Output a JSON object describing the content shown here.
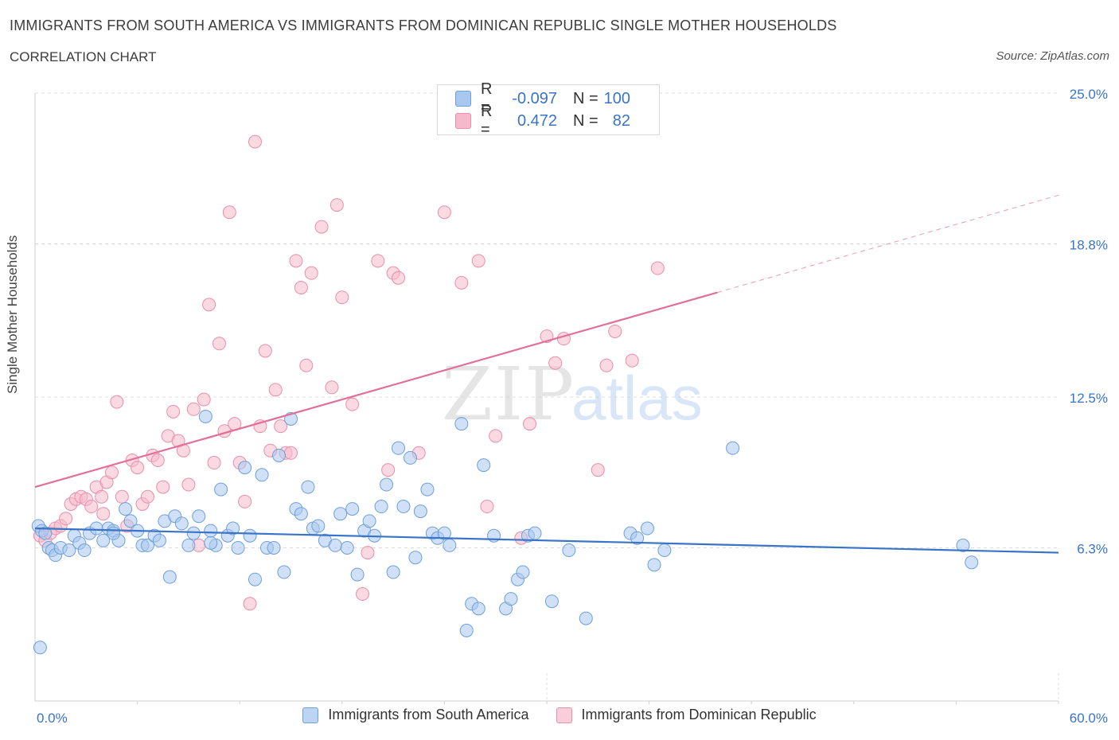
{
  "header": {
    "title": "IMMIGRANTS FROM SOUTH AMERICA VS IMMIGRANTS FROM DOMINICAN REPUBLIC SINGLE MOTHER HOUSEHOLDS",
    "subtitle": "CORRELATION CHART",
    "source": "Source: ZipAtlas.com"
  },
  "legend": {
    "rows": [
      {
        "r_label": "R =",
        "r_value": "-0.097",
        "n_label": "N =",
        "n_value": "100"
      },
      {
        "r_label": "R =",
        "r_value": "0.472",
        "n_label": "N =",
        "n_value": "82"
      }
    ]
  },
  "watermark": {
    "zip": "ZIP",
    "atlas": "atlas"
  },
  "colors": {
    "blue_fill": "#a9c8f0",
    "blue_stroke": "#6e9fdc",
    "blue_line": "#3a74c6",
    "pink_fill": "#f6b9cb",
    "pink_stroke": "#e88fab",
    "pink_line": "#e0709a",
    "tick_label": "#3a74c6",
    "grid": "#dcdcdc"
  },
  "chart_data": {
    "type": "scatter",
    "title": "IMMIGRANTS FROM SOUTH AMERICA VS IMMIGRANTS FROM DOMINICAN REPUBLIC SINGLE MOTHER HOUSEHOLDS",
    "xlabel": "",
    "ylabel": "Single Mother Households",
    "xlim": [
      0,
      60
    ],
    "ylim": [
      0,
      25
    ],
    "x_tick_labels": [
      "0.0%",
      "60.0%"
    ],
    "y_ticks": [
      6.3,
      12.5,
      18.8,
      25.0
    ],
    "y_tick_labels": [
      "6.3%",
      "12.5%",
      "18.8%",
      "25.0%"
    ],
    "grid": true,
    "legend_position": "top-center",
    "series": [
      {
        "name": "Immigrants from South America",
        "R": -0.097,
        "N": 100,
        "trend": {
          "x0": 0,
          "y0": 7.1,
          "x1": 60,
          "y1": 6.1
        },
        "points": [
          [
            0.2,
            7.2
          ],
          [
            0.4,
            7.0
          ],
          [
            0.6,
            6.9
          ],
          [
            0.8,
            6.3
          ],
          [
            1.0,
            6.2
          ],
          [
            1.2,
            6.0
          ],
          [
            1.5,
            6.3
          ],
          [
            2.0,
            6.2
          ],
          [
            2.3,
            6.8
          ],
          [
            2.6,
            6.5
          ],
          [
            2.9,
            6.2
          ],
          [
            3.2,
            6.9
          ],
          [
            3.6,
            7.1
          ],
          [
            4.0,
            6.6
          ],
          [
            4.3,
            7.1
          ],
          [
            4.6,
            7.0
          ],
          [
            4.9,
            6.6
          ],
          [
            5.3,
            7.9
          ],
          [
            5.6,
            7.4
          ],
          [
            6.0,
            7.0
          ],
          [
            6.3,
            6.4
          ],
          [
            6.6,
            6.4
          ],
          [
            7.0,
            6.8
          ],
          [
            7.3,
            6.6
          ],
          [
            7.6,
            7.4
          ],
          [
            7.9,
            5.1
          ],
          [
            8.2,
            7.6
          ],
          [
            8.6,
            7.3
          ],
          [
            9.0,
            6.4
          ],
          [
            9.3,
            6.9
          ],
          [
            9.6,
            7.6
          ],
          [
            10.0,
            11.7
          ],
          [
            10.3,
            7.0
          ],
          [
            10.6,
            6.4
          ],
          [
            10.9,
            8.7
          ],
          [
            11.3,
            6.8
          ],
          [
            11.6,
            7.1
          ],
          [
            11.9,
            6.3
          ],
          [
            12.3,
            9.6
          ],
          [
            12.6,
            6.8
          ],
          [
            12.9,
            5.0
          ],
          [
            13.3,
            9.3
          ],
          [
            13.6,
            6.3
          ],
          [
            14.0,
            6.3
          ],
          [
            14.3,
            10.1
          ],
          [
            14.6,
            5.3
          ],
          [
            15.0,
            11.6
          ],
          [
            15.3,
            7.9
          ],
          [
            15.6,
            7.7
          ],
          [
            16.0,
            8.8
          ],
          [
            16.3,
            7.1
          ],
          [
            16.6,
            7.2
          ],
          [
            17.0,
            6.6
          ],
          [
            17.6,
            6.4
          ],
          [
            17.9,
            7.7
          ],
          [
            18.3,
            6.3
          ],
          [
            18.6,
            7.9
          ],
          [
            18.9,
            5.2
          ],
          [
            19.3,
            7.0
          ],
          [
            19.6,
            7.4
          ],
          [
            19.9,
            6.8
          ],
          [
            20.3,
            8.0
          ],
          [
            20.6,
            8.9
          ],
          [
            21.0,
            5.3
          ],
          [
            21.3,
            10.4
          ],
          [
            21.6,
            8.0
          ],
          [
            22.0,
            10.0
          ],
          [
            22.3,
            5.9
          ],
          [
            22.6,
            7.8
          ],
          [
            23.0,
            8.7
          ],
          [
            23.3,
            6.9
          ],
          [
            23.6,
            6.7
          ],
          [
            24.0,
            6.9
          ],
          [
            24.3,
            6.4
          ],
          [
            25.0,
            11.4
          ],
          [
            25.3,
            2.9
          ],
          [
            25.6,
            4.0
          ],
          [
            26.0,
            3.8
          ],
          [
            26.3,
            9.7
          ],
          [
            26.9,
            6.8
          ],
          [
            27.6,
            3.8
          ],
          [
            27.9,
            4.2
          ],
          [
            28.3,
            5.0
          ],
          [
            28.6,
            5.3
          ],
          [
            28.9,
            6.8
          ],
          [
            29.3,
            6.9
          ],
          [
            30.3,
            4.1
          ],
          [
            31.3,
            6.2
          ],
          [
            32.3,
            3.4
          ],
          [
            34.9,
            6.9
          ],
          [
            35.3,
            6.7
          ],
          [
            35.9,
            7.1
          ],
          [
            36.3,
            5.6
          ],
          [
            36.9,
            6.2
          ],
          [
            40.9,
            10.4
          ],
          [
            54.4,
            6.4
          ],
          [
            54.9,
            5.7
          ],
          [
            0.3,
            2.2
          ],
          [
            10.3,
            6.5
          ],
          [
            4.6,
            6.9
          ]
        ]
      },
      {
        "name": "Immigrants from Dominican Republic",
        "R": 0.472,
        "N": 82,
        "trend": {
          "x0": 0,
          "y0": 8.8,
          "x1": 40,
          "y1": 16.8,
          "dashed_to_x": 60,
          "dashed_to_y": 20.8
        },
        "points": [
          [
            0.3,
            6.8
          ],
          [
            0.6,
            6.6
          ],
          [
            0.9,
            6.9
          ],
          [
            1.2,
            7.1
          ],
          [
            1.5,
            7.2
          ],
          [
            1.8,
            7.5
          ],
          [
            2.1,
            8.1
          ],
          [
            2.4,
            8.3
          ],
          [
            2.7,
            8.4
          ],
          [
            3.0,
            8.3
          ],
          [
            3.3,
            8.0
          ],
          [
            3.6,
            8.8
          ],
          [
            3.9,
            8.4
          ],
          [
            4.2,
            9.0
          ],
          [
            4.5,
            9.4
          ],
          [
            4.8,
            12.3
          ],
          [
            5.1,
            8.4
          ],
          [
            5.4,
            7.2
          ],
          [
            5.7,
            9.9
          ],
          [
            6.0,
            9.6
          ],
          [
            6.3,
            8.1
          ],
          [
            6.6,
            8.4
          ],
          [
            6.9,
            10.1
          ],
          [
            7.2,
            9.9
          ],
          [
            7.5,
            8.8
          ],
          [
            7.8,
            10.9
          ],
          [
            8.1,
            11.9
          ],
          [
            8.4,
            10.7
          ],
          [
            8.7,
            10.3
          ],
          [
            9.0,
            8.9
          ],
          [
            9.3,
            12.0
          ],
          [
            9.6,
            6.4
          ],
          [
            9.9,
            12.4
          ],
          [
            10.2,
            16.3
          ],
          [
            10.5,
            9.8
          ],
          [
            10.8,
            14.7
          ],
          [
            11.1,
            11.1
          ],
          [
            11.4,
            20.1
          ],
          [
            11.7,
            11.4
          ],
          [
            12.0,
            9.8
          ],
          [
            12.3,
            8.2
          ],
          [
            12.6,
            4.0
          ],
          [
            12.9,
            23.0
          ],
          [
            13.2,
            11.3
          ],
          [
            13.5,
            14.4
          ],
          [
            13.8,
            10.3
          ],
          [
            14.1,
            12.8
          ],
          [
            14.4,
            11.3
          ],
          [
            14.7,
            10.2
          ],
          [
            15.0,
            10.2
          ],
          [
            15.3,
            18.1
          ],
          [
            15.6,
            17.0
          ],
          [
            15.9,
            13.8
          ],
          [
            16.2,
            17.6
          ],
          [
            16.8,
            19.5
          ],
          [
            17.4,
            12.9
          ],
          [
            17.7,
            20.4
          ],
          [
            18.0,
            16.6
          ],
          [
            18.6,
            12.2
          ],
          [
            19.2,
            4.4
          ],
          [
            19.5,
            6.1
          ],
          [
            20.1,
            18.1
          ],
          [
            20.7,
            9.5
          ],
          [
            21.0,
            17.6
          ],
          [
            21.3,
            17.4
          ],
          [
            22.5,
            10.2
          ],
          [
            24.0,
            20.1
          ],
          [
            25.0,
            17.2
          ],
          [
            26.0,
            18.1
          ],
          [
            26.5,
            8.0
          ],
          [
            27.0,
            10.9
          ],
          [
            28.5,
            6.7
          ],
          [
            29.0,
            11.4
          ],
          [
            30.0,
            15.0
          ],
          [
            30.5,
            13.9
          ],
          [
            31.0,
            14.9
          ],
          [
            33.0,
            9.5
          ],
          [
            33.5,
            13.8
          ],
          [
            34.0,
            15.2
          ],
          [
            35.0,
            14.0
          ],
          [
            36.5,
            17.8
          ],
          [
            4.0,
            7.7
          ]
        ]
      }
    ]
  },
  "bottom_legend": {
    "items": [
      {
        "label": "Immigrants from South America"
      },
      {
        "label": "Immigrants from Dominican Republic"
      }
    ]
  }
}
